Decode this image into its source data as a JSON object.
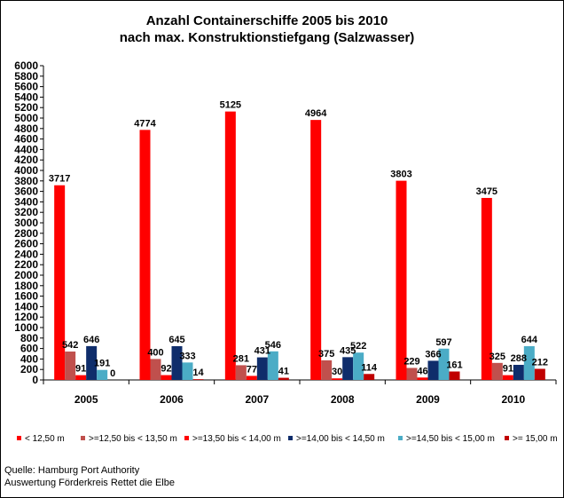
{
  "chart_data": {
    "type": "bar",
    "title_lines": [
      "Anzahl Containerschiffe 2005 bis 2010",
      "nach max. Konstruktionstiefgang (Salzwasser)"
    ],
    "categories": [
      "2005",
      "2006",
      "2007",
      "2008",
      "2009",
      "2010"
    ],
    "ylim": [
      0,
      6000
    ],
    "yticks": [
      "0",
      "200",
      "400",
      "600",
      "800",
      "1000",
      "1200",
      "1400",
      "1600",
      "1800",
      "2000",
      "2200",
      "2400",
      "2600",
      "2800",
      "3000",
      "3200",
      "3400",
      "3600",
      "3800",
      "4000",
      "4200",
      "4400",
      "4600",
      "4800",
      "5000",
      "5200",
      "5400",
      "5600",
      "5800",
      "6000"
    ],
    "grid": false,
    "legend_position": "bottom",
    "series": [
      {
        "name": "< 12,50 m",
        "color": "#ff0000",
        "values": [
          3717,
          4774,
          5125,
          4964,
          3803,
          3475
        ]
      },
      {
        "name": ">=12,50 bis < 13,50 m",
        "color": "#c0504d",
        "values": [
          542,
          400,
          281,
          375,
          229,
          325
        ]
      },
      {
        "name": ">=13,50 bis < 14,00 m",
        "color": "#ff0000",
        "values": [
          91,
          92,
          77,
          30,
          46,
          91
        ]
      },
      {
        "name": ">=14,00 bis < 14,50 m",
        "color": "#0f2d6b",
        "values": [
          646,
          645,
          431,
          435,
          366,
          288
        ]
      },
      {
        "name": ">=14,50 bis < 15,00 m",
        "color": "#4bacc6",
        "values": [
          191,
          333,
          546,
          522,
          597,
          644
        ]
      },
      {
        "name": ">= 15,00 m",
        "color": "#c00000",
        "values": [
          0,
          14,
          41,
          114,
          161,
          212
        ]
      }
    ]
  },
  "source": {
    "line1": "Quelle: Hamburg Port Authority",
    "line2": "Auswertung Förderkreis Rettet die Elbe"
  }
}
